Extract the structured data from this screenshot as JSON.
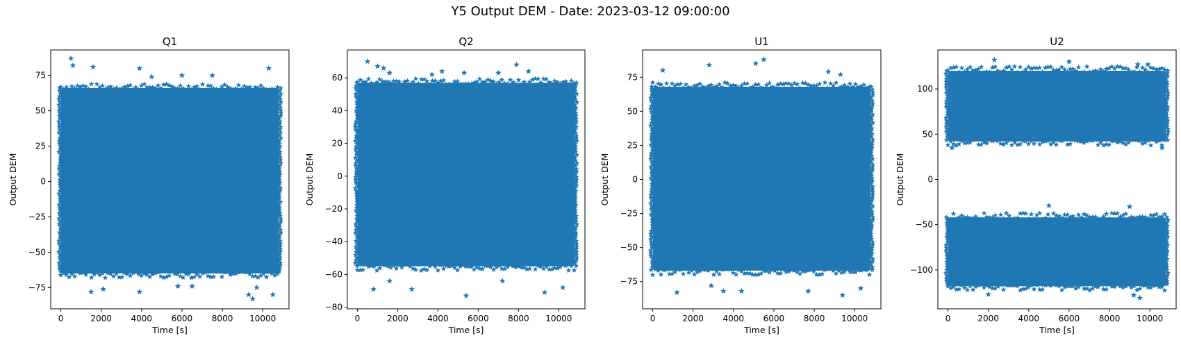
{
  "figure": {
    "title": "Y5 Output DEM - Date: 2023-03-12 09:00:00"
  },
  "chart_data": [
    {
      "type": "scatter",
      "title": "Q1",
      "xlabel": "Time [s]",
      "ylabel": "Output DEM",
      "marker": "star",
      "color": "#1f77b4",
      "xlim": [
        -500,
        11300
      ],
      "ylim": [
        -90,
        93
      ],
      "xticks": [
        0,
        2000,
        4000,
        6000,
        8000,
        10000
      ],
      "yticks": [
        -75,
        -50,
        -25,
        0,
        25,
        50,
        75
      ],
      "x_range": [
        0,
        10800
      ],
      "bands": [
        {
          "low": -65,
          "high": 66
        }
      ],
      "outliers": [
        [
          500,
          87
        ],
        [
          600,
          82
        ],
        [
          1600,
          81
        ],
        [
          3900,
          80
        ],
        [
          4500,
          74
        ],
        [
          6000,
          75
        ],
        [
          7500,
          75
        ],
        [
          10300,
          80
        ],
        [
          1500,
          -78
        ],
        [
          2100,
          -76
        ],
        [
          3900,
          -78
        ],
        [
          5800,
          -74
        ],
        [
          6500,
          -74
        ],
        [
          9300,
          -80
        ],
        [
          9700,
          -75
        ],
        [
          10500,
          -80
        ],
        [
          9500,
          -83
        ]
      ]
    },
    {
      "type": "scatter",
      "title": "Q2",
      "xlabel": "Time [s]",
      "ylabel": "Output DEM",
      "marker": "star",
      "color": "#1f77b4",
      "xlim": [
        -500,
        11300
      ],
      "ylim": [
        -81,
        77
      ],
      "xticks": [
        0,
        2000,
        4000,
        6000,
        8000,
        10000
      ],
      "yticks": [
        -80,
        -60,
        -40,
        -20,
        0,
        20,
        40,
        60
      ],
      "x_range": [
        0,
        10800
      ],
      "bands": [
        {
          "low": -55,
          "high": 57
        }
      ],
      "outliers": [
        [
          500,
          70
        ],
        [
          1000,
          67
        ],
        [
          1300,
          66
        ],
        [
          1600,
          63
        ],
        [
          3700,
          62
        ],
        [
          4200,
          64
        ],
        [
          5300,
          63
        ],
        [
          7000,
          63
        ],
        [
          7900,
          68
        ],
        [
          8500,
          64
        ],
        [
          800,
          -69
        ],
        [
          1600,
          -64
        ],
        [
          2700,
          -69
        ],
        [
          5400,
          -73
        ],
        [
          7200,
          -64
        ],
        [
          9300,
          -71
        ],
        [
          10200,
          -68
        ]
      ]
    },
    {
      "type": "scatter",
      "title": "U1",
      "xlabel": "Time [s]",
      "ylabel": "Output DEM",
      "marker": "star",
      "color": "#1f77b4",
      "xlim": [
        -500,
        11300
      ],
      "ylim": [
        -95,
        95
      ],
      "xticks": [
        0,
        2000,
        4000,
        6000,
        8000,
        10000
      ],
      "yticks": [
        -75,
        -50,
        -25,
        0,
        25,
        50,
        75
      ],
      "x_range": [
        0,
        10800
      ],
      "bands": [
        {
          "low": -67,
          "high": 68
        }
      ],
      "outliers": [
        [
          500,
          80
        ],
        [
          2800,
          84
        ],
        [
          5100,
          85
        ],
        [
          5500,
          88
        ],
        [
          8700,
          79
        ],
        [
          9300,
          77
        ],
        [
          1200,
          -83
        ],
        [
          2900,
          -78
        ],
        [
          3500,
          -82
        ],
        [
          4400,
          -82
        ],
        [
          7700,
          -82
        ],
        [
          9400,
          -85
        ],
        [
          10300,
          -80
        ]
      ]
    },
    {
      "type": "scatter",
      "title": "U2",
      "xlabel": "Time [s]",
      "ylabel": "Output DEM",
      "marker": "star",
      "color": "#1f77b4",
      "xlim": [
        -500,
        11300
      ],
      "ylim": [
        -143,
        143
      ],
      "xticks": [
        0,
        2000,
        4000,
        6000,
        8000,
        10000
      ],
      "yticks": [
        -100,
        -50,
        0,
        50,
        100
      ],
      "x_range": [
        0,
        10800
      ],
      "bands": [
        {
          "low": 42,
          "high": 120
        },
        {
          "low": -118,
          "high": -42
        }
      ],
      "outliers": [
        [
          2300,
          132
        ],
        [
          6000,
          130
        ],
        [
          9400,
          127
        ],
        [
          9900,
          127
        ],
        [
          200,
          35
        ],
        [
          10600,
          35
        ],
        [
          5000,
          -29
        ],
        [
          9000,
          -30
        ],
        [
          2000,
          -127
        ],
        [
          9200,
          -128
        ],
        [
          9500,
          -131
        ]
      ]
    }
  ]
}
